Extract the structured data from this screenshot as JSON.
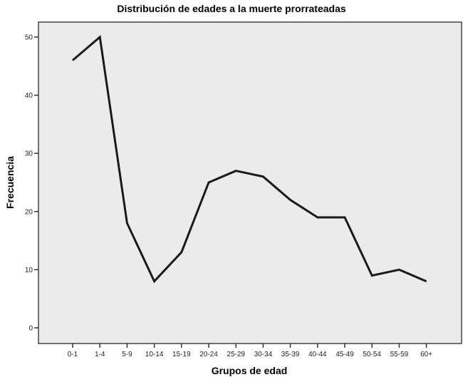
{
  "chart_data": {
    "type": "line",
    "title": "Distribución de edades a la muerte prorrateadas",
    "xlabel": "Grupos de edad",
    "ylabel": "Frecuencia",
    "categories": [
      "0-1",
      "1-4",
      "5-9",
      "10-14",
      "15-19",
      "20-24",
      "25-29",
      "30-34",
      "35-39",
      "40-44",
      "45-49",
      "50-54",
      "55-59",
      "60+"
    ],
    "series": [
      {
        "name": "Frecuencia",
        "values": [
          46,
          50,
          18,
          8,
          13,
          25,
          27,
          26,
          22,
          19,
          19,
          9,
          10,
          8
        ],
        "color": "#1a1a1a"
      }
    ],
    "yticks": [
      0,
      10,
      20,
      30,
      40,
      50
    ],
    "ylim": [
      -2.5,
      52.5
    ],
    "grid": false,
    "legend": null,
    "plot_background": "#ebebeb"
  }
}
